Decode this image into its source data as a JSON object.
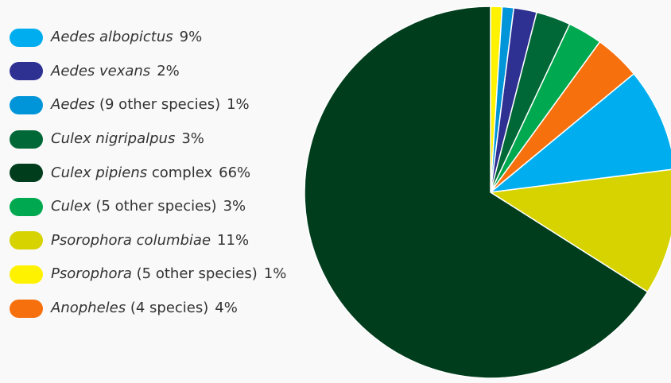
{
  "chart_data": {
    "type": "pie",
    "legend_position": "left",
    "slices": [
      {
        "genus": "Aedes albopictus",
        "rest": "",
        "percent_label": "9%",
        "value": 9,
        "color": "#00aeef"
      },
      {
        "genus": "Aedes vexans",
        "rest": "",
        "percent_label": "2%",
        "value": 2,
        "color": "#2e3192"
      },
      {
        "genus": "Aedes",
        "rest": " (9 other species)",
        "percent_label": "1%",
        "value": 1,
        "color": "#0095d9"
      },
      {
        "genus": "Culex nigripalpus",
        "rest": "",
        "percent_label": "3%",
        "value": 3,
        "color": "#006837"
      },
      {
        "genus": "Culex pipiens",
        "rest": " complex",
        "percent_label": "66%",
        "value": 66,
        "color": "#003d1c"
      },
      {
        "genus": "Culex",
        "rest": " (5 other species)",
        "percent_label": "3%",
        "value": 3,
        "color": "#00a94f"
      },
      {
        "genus": "Psorophora columbiae",
        "rest": "",
        "percent_label": "11%",
        "value": 11,
        "color": "#d7d300"
      },
      {
        "genus": "Psorophora",
        "rest": " (5 other species)",
        "percent_label": "1%",
        "value": 1,
        "color": "#fff200"
      },
      {
        "genus": "Anopheles",
        "rest": " (4 species)",
        "percent_label": "4%",
        "value": 4,
        "color": "#f7700e"
      }
    ],
    "draw_order": [
      7,
      2,
      1,
      3,
      5,
      8,
      0,
      6,
      4
    ]
  }
}
